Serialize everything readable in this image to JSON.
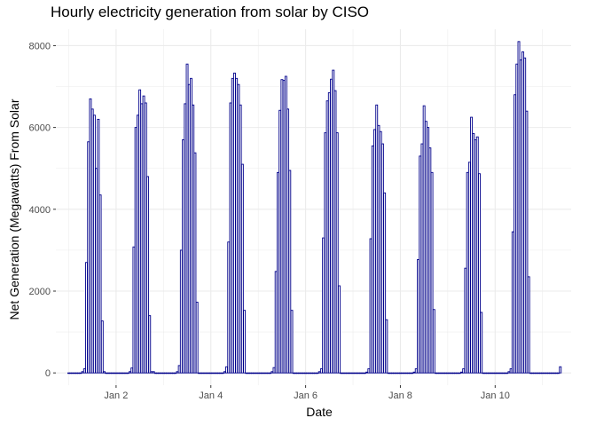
{
  "chart_data": {
    "type": "bar",
    "title": "Hourly electricity generation from solar by CISO",
    "xlabel": "Date",
    "ylabel": "Net Generation (Megawatts) From Solar",
    "x_tick_labels": [
      "Jan  2",
      "Jan  4",
      "Jan  6",
      "Jan  8",
      "Jan 10"
    ],
    "x_tick_dates": [
      "2022-01-02",
      "2022-01-04",
      "2022-01-06",
      "2022-01-08",
      "2022-01-10"
    ],
    "x_range": [
      "2021-12-31T17:30",
      "2022-01-11T14:30"
    ],
    "y_ticks": [
      0,
      2000,
      4000,
      6000,
      8000
    ],
    "y_tick_labels": [
      "0",
      "2000",
      "4000",
      "6000",
      "8000"
    ],
    "ylim": [
      -300,
      8400
    ],
    "grid": true,
    "bar_color": "#00008b",
    "series": [
      {
        "start": "2022-01-01T00:00",
        "interval_hours": 1,
        "values": [
          0,
          0,
          0,
          0,
          0,
          0,
          0,
          30,
          100,
          2700,
          5650,
          6700,
          6450,
          6300,
          5000,
          6200,
          4350,
          1270,
          30,
          0,
          0,
          0,
          0,
          0,
          0,
          0,
          0,
          0,
          0,
          0,
          0,
          30,
          120,
          3080,
          6000,
          6300,
          6920,
          6580,
          6770,
          6600,
          4800,
          1400,
          30,
          30,
          0,
          0,
          0,
          0,
          0,
          0,
          0,
          0,
          0,
          0,
          0,
          30,
          180,
          3000,
          5700,
          6580,
          7550,
          7050,
          7200,
          6550,
          5380,
          1730,
          0,
          0,
          0,
          0,
          0,
          0,
          0,
          0,
          0,
          0,
          0,
          0,
          0,
          30,
          150,
          3200,
          6600,
          7200,
          7330,
          7200,
          7050,
          6550,
          5100,
          1530,
          0,
          0,
          0,
          0,
          0,
          0,
          0,
          0,
          0,
          0,
          0,
          0,
          0,
          30,
          130,
          2480,
          4900,
          6420,
          7170,
          7150,
          7250,
          6450,
          4950,
          1530,
          0,
          0,
          0,
          0,
          0,
          0,
          0,
          0,
          0,
          0,
          0,
          0,
          0,
          30,
          100,
          3300,
          5870,
          6650,
          6850,
          7180,
          7400,
          6900,
          5870,
          2130,
          0,
          0,
          0,
          0,
          0,
          0,
          0,
          0,
          0,
          0,
          0,
          0,
          0,
          20,
          100,
          3280,
          5550,
          5950,
          6550,
          6050,
          5900,
          5600,
          4400,
          1300,
          0,
          0,
          0,
          0,
          0,
          0,
          0,
          0,
          0,
          0,
          0,
          0,
          0,
          20,
          100,
          2770,
          5300,
          5600,
          6530,
          6150,
          6000,
          5500,
          4900,
          1550,
          0,
          0,
          0,
          0,
          0,
          0,
          0,
          0,
          0,
          0,
          0,
          0,
          0,
          20,
          100,
          2560,
          4900,
          5150,
          6250,
          5850,
          5700,
          5770,
          4870,
          1480,
          0,
          0,
          0,
          0,
          0,
          0,
          0,
          0,
          0,
          0,
          0,
          0,
          0,
          30,
          100,
          3450,
          6800,
          7550,
          8100,
          7650,
          7850,
          7700,
          6400,
          2350,
          0,
          0,
          0,
          0,
          0,
          0,
          0,
          0,
          0,
          0,
          0,
          0,
          0,
          0,
          0,
          150
        ]
      }
    ]
  }
}
